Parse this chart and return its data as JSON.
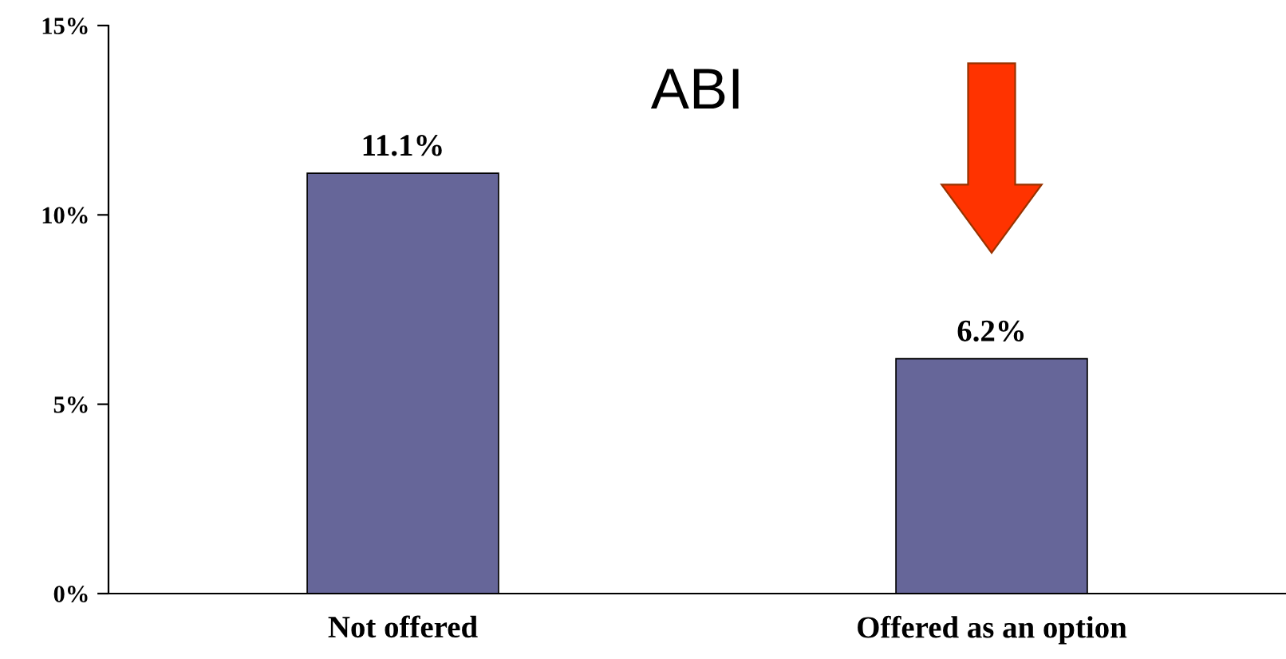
{
  "chart_data": {
    "type": "bar",
    "categories": [
      "Not offered",
      "Offered as an option"
    ],
    "values": [
      11.1,
      6.2
    ],
    "color": "#666699",
    "value_labels": [
      "11.1%",
      "6.2%"
    ],
    "ylim": [
      0,
      15
    ],
    "yticks": [
      {
        "value": 0,
        "label": "0%"
      },
      {
        "value": 5,
        "label": "5%"
      },
      {
        "value": 10,
        "label": "10%"
      },
      {
        "value": 15,
        "label": "15%"
      }
    ],
    "annotations": [
      "ABI"
    ],
    "grid": false,
    "legend": false
  }
}
